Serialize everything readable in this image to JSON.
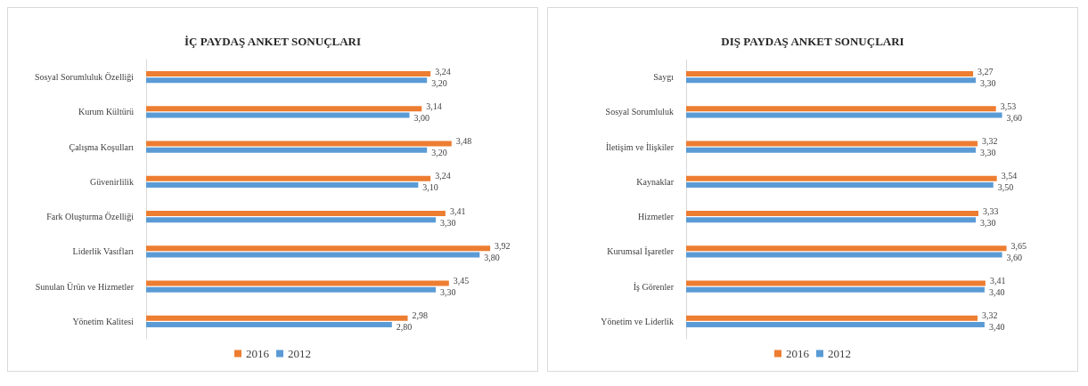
{
  "chart_data": [
    {
      "type": "bar",
      "orientation": "horizontal",
      "title": "İÇ PAYDAŞ ANKET SONUÇLARI",
      "categories": [
        "Sosyal Sorumluluk Özelliği",
        "Kurum Kültürü",
        "Çalışma Koşulları",
        "Güvenirlilik",
        "Fark Oluşturma Özelliği",
        "Liderlik Vasıfları",
        "Sunulan Ürün ve Hizmetler",
        "Yönetim Kalitesi"
      ],
      "series": [
        {
          "name": "2016",
          "color": "#ed7d31",
          "values": [
            3.24,
            3.14,
            3.48,
            3.24,
            3.41,
            3.92,
            3.45,
            2.98
          ],
          "value_labels": [
            "3,24",
            "3,14",
            "3,48",
            "3,24",
            "3,41",
            "3,92",
            "3,45",
            "2,98"
          ]
        },
        {
          "name": "2012",
          "color": "#5b9bd5",
          "values": [
            3.2,
            3.0,
            3.2,
            3.1,
            3.3,
            3.8,
            3.3,
            2.8
          ],
          "value_labels": [
            "3,20",
            "3,00",
            "3,20",
            "3,10",
            "3,30",
            "3,80",
            "3,30",
            "2,80"
          ]
        }
      ],
      "tick_labels": "y",
      "grid": false,
      "legend": "bottom"
    },
    {
      "type": "bar",
      "orientation": "horizontal",
      "title": "DIŞ PAYDAŞ ANKET SONUÇLARI",
      "categories": [
        "Saygı",
        "Sosyal Sorumluluk",
        "İletişim ve İlişkiler",
        "Kaynaklar",
        "Hizmetler",
        "Kurumsal İşaretler",
        "İş Görenler",
        "Yönetim ve Liderlik"
      ],
      "series": [
        {
          "name": "2016",
          "color": "#ed7d31",
          "values": [
            3.27,
            3.53,
            3.32,
            3.54,
            3.33,
            3.65,
            3.41,
            3.32
          ],
          "value_labels": [
            "3,27",
            "3,53",
            "3,32",
            "3,54",
            "3,33",
            "3,65",
            "3,41",
            "3,32"
          ]
        },
        {
          "name": "2012",
          "color": "#5b9bd5",
          "values": [
            3.3,
            3.6,
            3.3,
            3.5,
            3.3,
            3.6,
            3.4,
            3.4
          ],
          "value_labels": [
            "3,30",
            "3,60",
            "3,30",
            "3,50",
            "3,30",
            "3,60",
            "3,40",
            "3,40"
          ]
        }
      ],
      "tick_labels": "y",
      "grid": false,
      "legend": "bottom"
    }
  ]
}
